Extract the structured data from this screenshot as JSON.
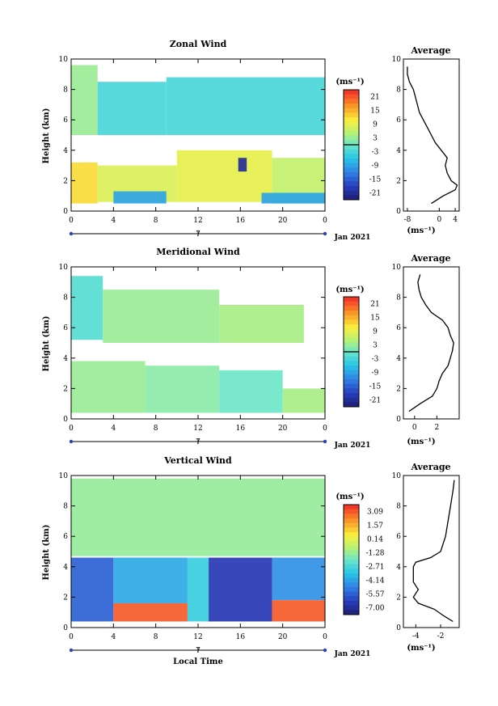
{
  "chart_data": [
    {
      "type": "heatmap",
      "title": "Zonal Wind",
      "xlabel": "",
      "ylabel": "Height (km)",
      "x_ticks": [
        "0",
        "4",
        "8",
        "12",
        "16",
        "20",
        "0"
      ],
      "y_ticks": [
        "0",
        "2",
        "4",
        "6",
        "8",
        "10"
      ],
      "xlim": [
        0,
        24
      ],
      "ylim": [
        0,
        10
      ],
      "date_tick": "7",
      "date_label": "Jan 2021",
      "colorbar": {
        "unit": "(ms⁻¹)",
        "ticks": [
          "21",
          "15",
          "9",
          "3",
          "-3",
          "-9",
          "-15",
          "-21"
        ],
        "zero_line": true
      },
      "field_regions": [
        {
          "x": [
            0,
            2.5
          ],
          "y": [
            5,
            9.6
          ],
          "value": 3
        },
        {
          "x": [
            2.5,
            9
          ],
          "y": [
            5,
            8.5
          ],
          "value": -3
        },
        {
          "x": [
            9,
            24
          ],
          "y": [
            5,
            8.8
          ],
          "value": -3
        },
        {
          "x": [
            0,
            2.5
          ],
          "y": [
            0.5,
            3.2
          ],
          "value": 12
        },
        {
          "x": [
            2.5,
            10
          ],
          "y": [
            0.6,
            3
          ],
          "value": 8
        },
        {
          "x": [
            10,
            19
          ],
          "y": [
            0.6,
            4
          ],
          "value": 9
        },
        {
          "x": [
            19,
            24
          ],
          "y": [
            0.5,
            3.5
          ],
          "value": 6
        },
        {
          "x": [
            4,
            9
          ],
          "y": [
            0.5,
            1.3
          ],
          "value": -9
        },
        {
          "x": [
            18,
            24
          ],
          "y": [
            0.5,
            1.2
          ],
          "value": -9
        },
        {
          "x": [
            15.8,
            16.6
          ],
          "y": [
            2.6,
            3.5
          ],
          "value": -21
        }
      ],
      "average_profile": {
        "title": "Average",
        "xlabel": "(ms⁻¹)",
        "x_ticks": [
          "-8",
          "0",
          "4"
        ],
        "xlim": [
          -9,
          5
        ],
        "y_ticks": [
          "0",
          "2",
          "4",
          "6",
          "8",
          "10"
        ],
        "height": [
          0.5,
          1.0,
          1.4,
          1.7,
          2.0,
          2.5,
          3.0,
          3.5,
          4.0,
          4.5,
          5.0,
          5.5,
          6.0,
          6.5,
          7.0,
          7.5,
          8.0,
          8.5,
          9.0,
          9.5
        ],
        "value": [
          -2,
          1,
          4,
          4.5,
          3,
          2,
          1.5,
          2,
          0.5,
          -1,
          -2,
          -3,
          -4,
          -5,
          -5.5,
          -6,
          -6.5,
          -7.5,
          -8,
          -8
        ]
      }
    },
    {
      "type": "heatmap",
      "title": "Meridional Wind",
      "xlabel": "",
      "ylabel": "Height (km)",
      "x_ticks": [
        "0",
        "4",
        "8",
        "12",
        "16",
        "20",
        "0"
      ],
      "y_ticks": [
        "0",
        "2",
        "4",
        "6",
        "8",
        "10"
      ],
      "xlim": [
        0,
        24
      ],
      "ylim": [
        0,
        10
      ],
      "date_tick": "7",
      "date_label": "Jan 2021",
      "colorbar": {
        "unit": "(ms⁻¹)",
        "ticks": [
          "21",
          "15",
          "9",
          "3",
          "-3",
          "-9",
          "-15",
          "-21"
        ],
        "zero_line": true
      },
      "field_regions": [
        {
          "x": [
            0,
            3
          ],
          "y": [
            5.2,
            9.4
          ],
          "value": -2
        },
        {
          "x": [
            3,
            14
          ],
          "y": [
            5,
            8.5
          ],
          "value": 3
        },
        {
          "x": [
            14,
            22
          ],
          "y": [
            5,
            7.5
          ],
          "value": 4
        },
        {
          "x": [
            0,
            7
          ],
          "y": [
            0.4,
            3.8
          ],
          "value": 3
        },
        {
          "x": [
            7,
            14
          ],
          "y": [
            0.4,
            3.5
          ],
          "value": 2
        },
        {
          "x": [
            14,
            20
          ],
          "y": [
            0.4,
            3.2
          ],
          "value": 0
        },
        {
          "x": [
            20,
            24
          ],
          "y": [
            0.4,
            2
          ],
          "value": 4
        }
      ],
      "average_profile": {
        "title": "Average",
        "xlabel": "(ms⁻¹)",
        "x_ticks": [
          "0",
          "2"
        ],
        "xlim": [
          -1,
          4
        ],
        "y_ticks": [
          "0",
          "2",
          "4",
          "6",
          "8",
          "10"
        ],
        "height": [
          0.5,
          1.0,
          1.5,
          2.0,
          2.5,
          3.0,
          3.5,
          4.0,
          4.5,
          5.0,
          5.5,
          6.0,
          6.5,
          7.0,
          7.5,
          8.0,
          8.5,
          9.0,
          9.5
        ],
        "value": [
          -0.5,
          0.5,
          1.6,
          2,
          2.2,
          2.5,
          3,
          3.2,
          3.4,
          3.5,
          3.2,
          3,
          2.5,
          1.5,
          1,
          0.6,
          0.4,
          0.3,
          0.5
        ]
      }
    },
    {
      "type": "heatmap",
      "title": "Vertical Wind",
      "xlabel": "Local Time",
      "ylabel": "Height (km)",
      "x_ticks": [
        "0",
        "4",
        "8",
        "12",
        "16",
        "20",
        "0"
      ],
      "y_ticks": [
        "0",
        "2",
        "4",
        "6",
        "8",
        "10"
      ],
      "xlim": [
        0,
        24
      ],
      "ylim": [
        0,
        10
      ],
      "date_tick": "7",
      "date_label": "Jan 2021",
      "colorbar": {
        "unit": "(ms⁻¹)",
        "ticks": [
          "3.09",
          "1.57",
          "0.14",
          "-1.28",
          "-2.71",
          "-4.14",
          "-5.57",
          "-7.00"
        ],
        "zero_line": false
      },
      "field_regions": [
        {
          "x": [
            0,
            24
          ],
          "y": [
            4.7,
            9.8
          ],
          "value": -1.3
        },
        {
          "x": [
            0,
            4
          ],
          "y": [
            0.4,
            4.6
          ],
          "value": -5.5
        },
        {
          "x": [
            4,
            11
          ],
          "y": [
            1.6,
            4.6
          ],
          "value": -4
        },
        {
          "x": [
            11,
            13
          ],
          "y": [
            0.4,
            4.6
          ],
          "value": -3
        },
        {
          "x": [
            13,
            19
          ],
          "y": [
            0.4,
            4.6
          ],
          "value": -6.5
        },
        {
          "x": [
            19,
            24
          ],
          "y": [
            1.8,
            4.6
          ],
          "value": -4.5
        },
        {
          "x": [
            4,
            11
          ],
          "y": [
            0.4,
            1.6
          ],
          "value": 3
        },
        {
          "x": [
            19,
            24
          ],
          "y": [
            0.4,
            1.8
          ],
          "value": 3
        }
      ],
      "average_profile": {
        "title": "Average",
        "xlabel": "(ms⁻¹)",
        "x_ticks": [
          "-4",
          "-2"
        ],
        "xlim": [
          -5,
          -0.5
        ],
        "y_ticks": [
          "0",
          "2",
          "4",
          "6",
          "8",
          "10"
        ],
        "height": [
          0.4,
          0.8,
          1.2,
          1.6,
          2.0,
          2.5,
          3.0,
          3.5,
          4.0,
          4.3,
          4.6,
          5.0,
          6.0,
          7.0,
          8.0,
          9.0,
          9.7
        ],
        "value": [
          -1,
          -1.8,
          -2.5,
          -3.8,
          -4.2,
          -3.8,
          -4.2,
          -4.2,
          -4.2,
          -4,
          -2.8,
          -2,
          -1.6,
          -1.4,
          -1.2,
          -1,
          -0.9
        ]
      }
    }
  ]
}
